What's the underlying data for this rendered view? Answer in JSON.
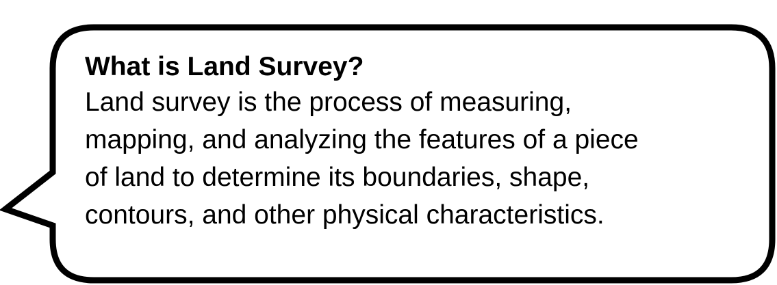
{
  "callout": {
    "title": "What is Land Survey?",
    "lines": [
      "Land survey is the process of measuring,",
      "mapping, and analyzing the features of a piece",
      "of land to determine its boundaries, shape,",
      "contours, and other physical characteristics."
    ],
    "stroke_color": "#000000",
    "fill_color": "#ffffff",
    "text_color": "#000000"
  }
}
